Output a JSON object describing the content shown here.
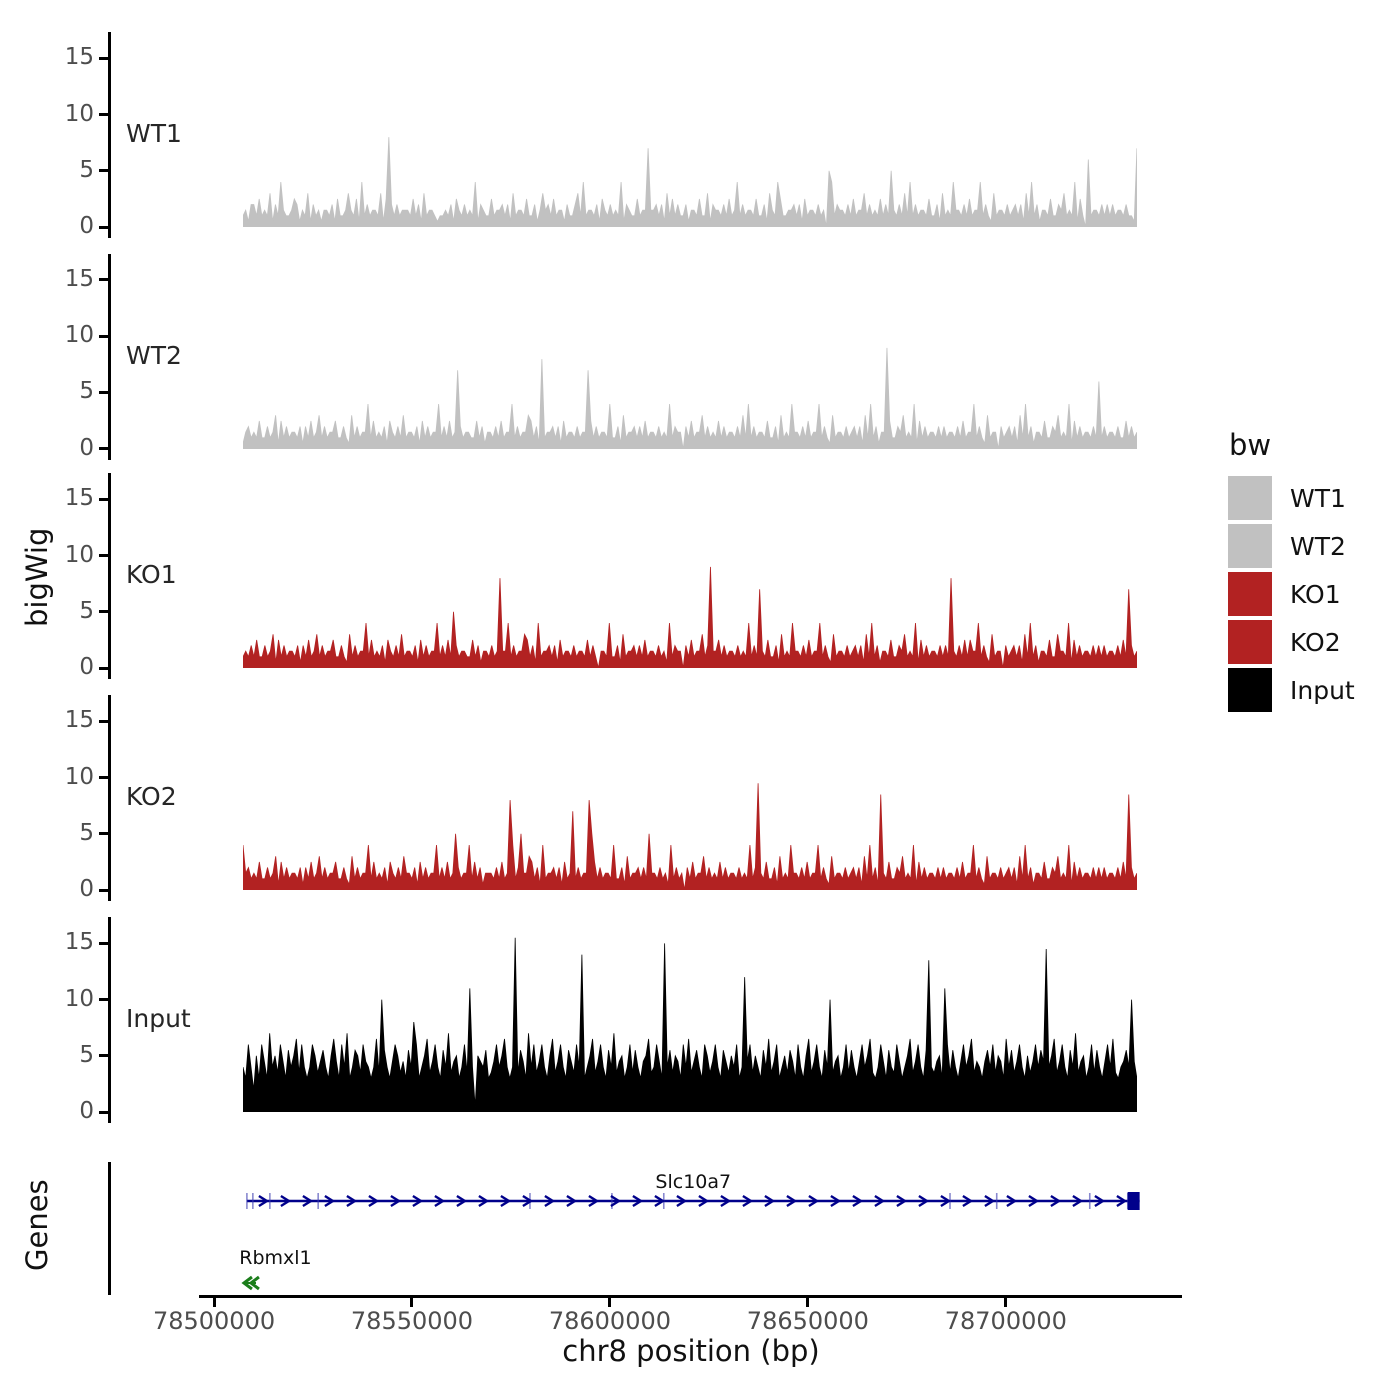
{
  "chart_data": {
    "type": "area",
    "title": "",
    "ylabel": "bigWig",
    "genes_panel_label": "Genes",
    "xlabel": "chr8 position (bp)",
    "x_domain_bp": [
      78496200,
      78744500
    ],
    "x_ticks_bp": [
      78500000,
      78550000,
      78600000,
      78650000,
      78700000
    ],
    "x_tick_labels": [
      "78500000",
      "78550000",
      "78600000",
      "78650000",
      "78700000"
    ],
    "y_ticks": [
      0,
      5,
      10,
      15
    ],
    "ylim": [
      0,
      16.5
    ],
    "data_range_bp": [
      78507300,
      78733100
    ],
    "value_encoding": "each character is a base36 digit; bigWig value = digit * 0.5; samples evenly spaced across data_range_bp",
    "tracks": [
      {
        "name": "WT1",
        "color": "#c1c1c1",
        "values": "231442523261428322354132614231332415223632518242332615g42423332524162332122324153242328143225233424162332522413634252331422462823324153242328143225233e334241625242241332522614332425238242332522416328522334241523324230a8243324252336242325242a324262824233252241623283324252338242162332423424162824133252243623281520c23324242423324221e"
      },
      {
        "name": "WT2",
        "color": "#c1c1c1",
        "values": "1342325224236152423324142523624233522421624233825232415324262332415242338242523e423322524133242523382423365241g2334241523324233e5242332822416233424252332423282433042523362423252423324262824233252241623283324252338242162332423424162824133i52243623281524233242423324252338242162330423424162824133252243623281524233242c24233242252423"
      },
      {
        "name": "KO1",
        "color": "#b22222",
        "values": "23242522423615242332414252362423352242162423382523241532426233241524233824252a4233225241332423g3382423365241823342415233242332524203328224162334242523324231824330425233624i33524233242328242e325224162328332425233824216233242342416282413325224362328152423324242g3242525338242162330423424162824133252263328152423324242423324252e423"
      },
      {
        "name": "KO2",
        "color": "#b22222",
        "values": "83423252242361524233241425236242335224216242338252324153242633241524233824252 3a4233825241333242523g824a336524182334241523e24233ga52423328224162334242a332423182423042523362423252423324232824j3252241623283324252338242162332423424162824 1h325224362328152423324242332425233824216233242342416282413325224362328152423324242423324252h423"
      },
      {
        "name": "Input",
        "color": "#000000",
        "values": "86c84a6c96e8a7c96b8ad7c868ca79b86ad96c8e68ba7c9868d7kb869ca796b8gc68ad79c86b8e79a68c7m81a98b679c8ad868v7b96e8c79c86ad79c86b97c8s68ad79c86b8e79a68c7b869ad78c96u8b7a96c8d79b86ca79c86b97a8c68o9c7a86b8d79c68a7b96c86ad79c86b8k79a68c7b869c8ad768c96b87c968ad79c86br879a6mc7b869c8ad79869b8c7a96d8b79c86a79c8b9t8ad79c86b8e79a68c7b869c8d7689b8k96"
      }
    ],
    "genes": [
      {
        "name": "Slc10a7",
        "strand": "+",
        "color": "#00008b",
        "start_bp": 78508300,
        "end_bp": 78733800,
        "exons_bp": [
          78508300,
          78509800,
          78514100,
          78526300,
          78579800,
          78600500,
          78613600,
          78685900,
          78697700,
          78721200,
          78730800,
          78733300
        ]
      },
      {
        "name": "Rbmxl1",
        "strand": "-",
        "color": "#1b7e1b",
        "start_bp": 78507300,
        "end_bp": 78510600,
        "exons_bp": []
      }
    ],
    "legend": {
      "title": "bw",
      "entries": [
        {
          "label": "WT1",
          "color": "#c1c1c1"
        },
        {
          "label": "WT2",
          "color": "#c1c1c1"
        },
        {
          "label": "KO1",
          "color": "#b22222"
        },
        {
          "label": "KO2",
          "color": "#b22222"
        },
        {
          "label": "Input",
          "color": "#000000"
        }
      ]
    }
  }
}
